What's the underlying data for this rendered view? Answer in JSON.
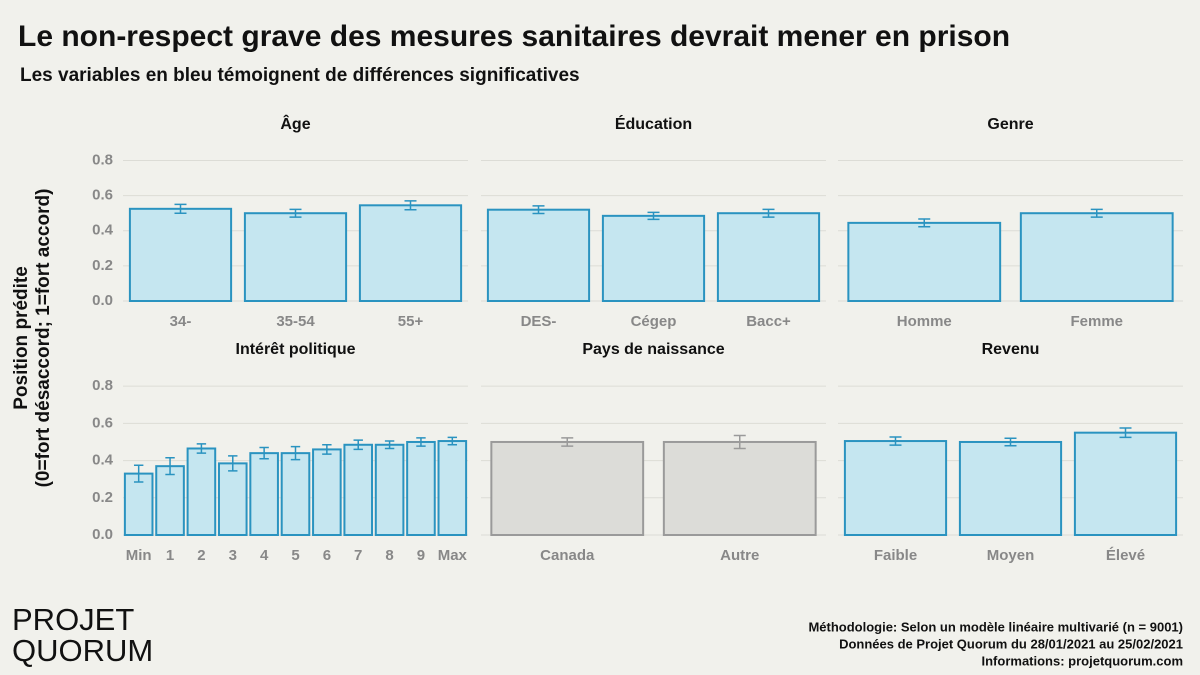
{
  "title": "Le non-respect grave des mesures sanitaires devrait mener en prison",
  "subtitle": "Les variables en bleu témoignent de différences significatives",
  "ylabel": [
    "Position prédite",
    "(0=fort désaccord; 1=fort accord)"
  ],
  "ylim": [
    0,
    0.86
  ],
  "yticks": [
    {
      "value": 0,
      "label": "0.0"
    },
    0.2,
    0.4,
    0.6,
    0.8
  ],
  "grid": true,
  "logo": [
    "PROJET",
    "QUORUM"
  ],
  "notes": [
    "Méthodologie: Selon un modèle linéaire multivarié (n = 9001)",
    "Données de Projet Quorum du 28/01/2021 au 25/02/2021",
    "Informations: projetquorum.com"
  ],
  "chart_data": [
    {
      "type": "bar",
      "title": "Âge",
      "categories": [
        "34-",
        "35-54",
        "55+"
      ],
      "values": [
        0.525,
        0.5,
        0.545
      ],
      "errors": [
        0.025,
        0.022,
        0.025
      ],
      "color": "#c5e6f0",
      "edgecolor": "#2a93c0"
    },
    {
      "type": "bar",
      "title": "Éducation",
      "categories": [
        "DES-",
        "Cégep",
        "Bacc+"
      ],
      "values": [
        0.52,
        0.485,
        0.5
      ],
      "errors": [
        0.022,
        0.02,
        0.022
      ],
      "color": "#c5e6f0",
      "edgecolor": "#2a93c0"
    },
    {
      "type": "bar",
      "title": "Genre",
      "categories": [
        "Homme",
        "Femme"
      ],
      "values": [
        0.445,
        0.5
      ],
      "errors": [
        0.022,
        0.022
      ],
      "color": "#c5e6f0",
      "edgecolor": "#2a93c0"
    },
    {
      "type": "bar",
      "title": "Intérêt politique",
      "categories": [
        "Min",
        "1",
        "2",
        "3",
        "4",
        "5",
        "6",
        "7",
        "8",
        "9",
        "Max"
      ],
      "values": [
        0.33,
        0.37,
        0.465,
        0.385,
        0.44,
        0.44,
        0.46,
        0.485,
        0.485,
        0.5,
        0.505
      ],
      "errors": [
        0.045,
        0.045,
        0.025,
        0.04,
        0.03,
        0.035,
        0.025,
        0.025,
        0.02,
        0.022,
        0.02
      ],
      "color": "#c5e6f0",
      "edgecolor": "#2a93c0"
    },
    {
      "type": "bar",
      "title": "Pays de naissance",
      "categories": [
        "Canada",
        "Autre"
      ],
      "values": [
        0.5,
        0.5
      ],
      "errors": [
        0.022,
        0.035
      ],
      "color": "#dcdcd8",
      "edgecolor": "#9a9a9a"
    },
    {
      "type": "bar",
      "title": "Revenu",
      "categories": [
        "Faible",
        "Moyen",
        "Élevé"
      ],
      "values": [
        0.505,
        0.5,
        0.55
      ],
      "errors": [
        0.022,
        0.02,
        0.025
      ],
      "color": "#c5e6f0",
      "edgecolor": "#2a93c0"
    }
  ]
}
